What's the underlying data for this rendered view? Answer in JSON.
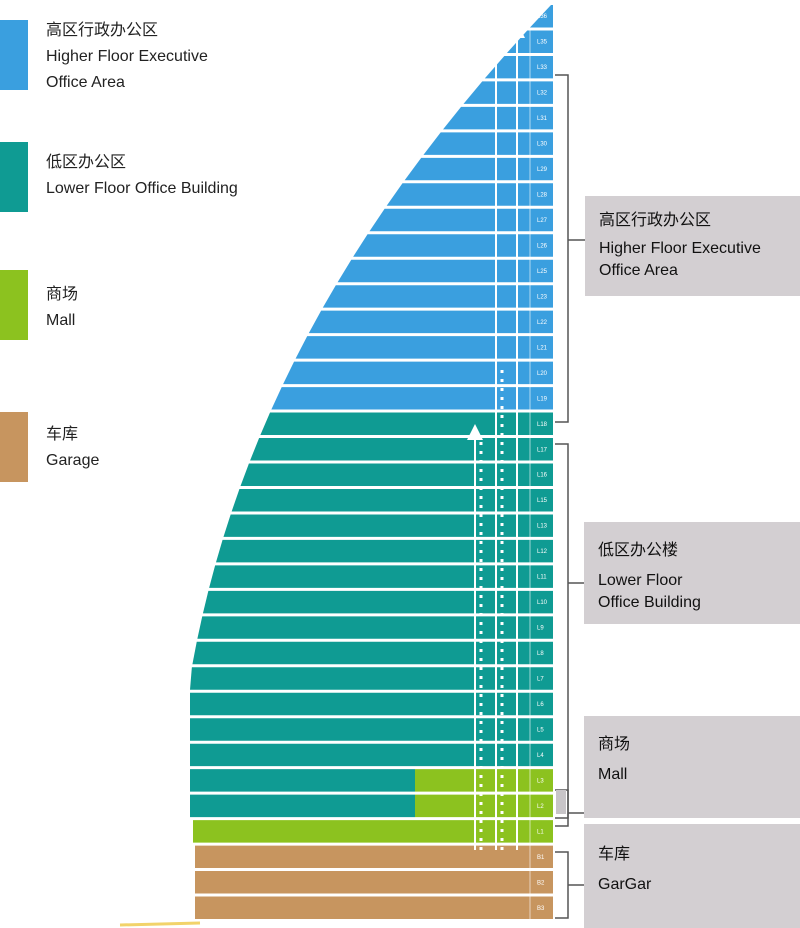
{
  "legend": [
    {
      "zh": "高区行政办公区",
      "en1": "Higher Floor Executive",
      "en2": "Office Area",
      "color": "#3a9fdf"
    },
    {
      "zh": "低区办公区",
      "en1": "Lower Floor Office Building",
      "en2": "",
      "color": "#0f9b93"
    },
    {
      "zh": "商场",
      "en1": "Mall",
      "en2": "",
      "color": "#8cc21f"
    },
    {
      "zh": "车库",
      "en1": "Garage",
      "en2": "",
      "color": "#c7955f"
    }
  ],
  "sections": {
    "high": {
      "zh": "高区行政办公区",
      "en1": "Higher Floor Executive",
      "en2": "Office Area"
    },
    "low": {
      "zh": "低区办公楼",
      "en1": "Lower Floor",
      "en2": "Office Building"
    },
    "mall": {
      "zh": "商场",
      "en1": "Mall"
    },
    "garage": {
      "zh": "车库",
      "en1": "GarGar"
    }
  },
  "floors": [
    "L36",
    "L35",
    "L33",
    "L32",
    "L31",
    "L30",
    "L29",
    "L28",
    "L27",
    "L26",
    "L25",
    "L23",
    "L22",
    "L21",
    "L20",
    "L19",
    "L18",
    "L17",
    "L16",
    "L15",
    "L13",
    "L12",
    "L11",
    "L10",
    "L9",
    "L8",
    "L7",
    "L6",
    "L5",
    "L4",
    "L3",
    "L2",
    "L1",
    "B1",
    "B2",
    "B3"
  ],
  "colors": {
    "high": "#3a9fdf",
    "low": "#0f9b93",
    "mall": "#8cc21f",
    "garage": "#c7955f",
    "bracket": "#555555",
    "label_bg": "#d3cfd2"
  }
}
